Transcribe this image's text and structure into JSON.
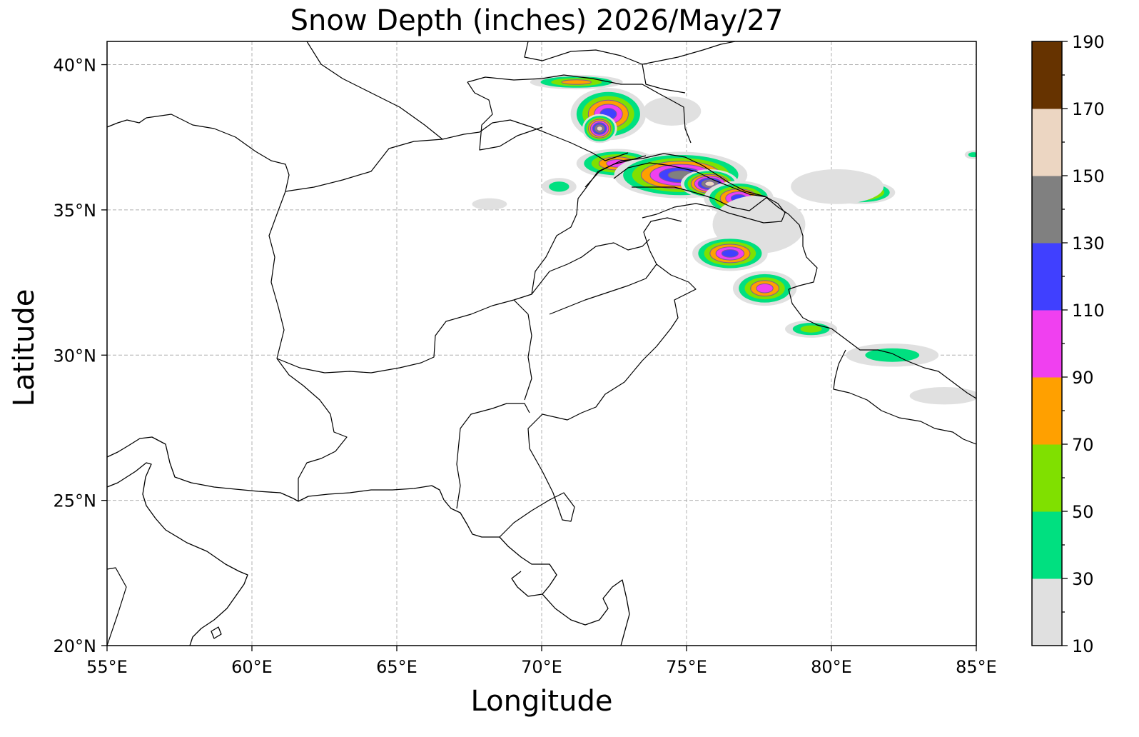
{
  "map": {
    "title": "Snow Depth (inches) 2026/May/27",
    "xlabel": "Longitude",
    "ylabel": "Latitude",
    "lon_range": [
      55,
      85
    ],
    "lat_range": [
      20,
      40.8
    ],
    "lon_ticks": [
      55,
      60,
      65,
      70,
      75,
      80,
      85
    ],
    "lon_tick_labels": [
      "55°E",
      "60°E",
      "65°E",
      "70°E",
      "75°E",
      "80°E",
      "85°E"
    ],
    "lat_ticks": [
      20,
      25,
      30,
      35,
      40
    ],
    "lat_tick_labels": [
      "20°N",
      "25°N",
      "30°N",
      "35°N",
      "40°N"
    ],
    "grid": true,
    "projection": "PlateCarree"
  },
  "colorbar": {
    "levels": [
      10,
      30,
      50,
      70,
      90,
      110,
      130,
      150,
      170,
      190
    ],
    "level_labels": [
      "10",
      "30",
      "50",
      "70",
      "90",
      "110",
      "130",
      "150",
      "170",
      "190"
    ],
    "colors": [
      "#e0e0e0",
      "#00e080",
      "#80e000",
      "#ffa000",
      "#f040f0",
      "#4040ff",
      "#808080",
      "#ecd6c2",
      "#663300"
    ],
    "placement": "right"
  },
  "colors": {
    "background": "#ffffff",
    "coastline": "#000000",
    "gridline": "#b0b0b0"
  },
  "snow_regions": [
    {
      "lon": 71.2,
      "lat": 39.4,
      "rx": 1.6,
      "ry": 0.25,
      "level": 3
    },
    {
      "lon": 72.3,
      "lat": 38.3,
      "rx": 1.3,
      "ry": 0.9,
      "level": 5
    },
    {
      "lon": 72.0,
      "lat": 37.8,
      "rx": 0.6,
      "ry": 0.5,
      "level": 7
    },
    {
      "lon": 74.5,
      "lat": 38.4,
      "rx": 1.0,
      "ry": 0.5,
      "level": 0
    },
    {
      "lon": 72.6,
      "lat": 36.6,
      "rx": 1.4,
      "ry": 0.5,
      "level": 4
    },
    {
      "lon": 74.8,
      "lat": 36.2,
      "rx": 2.3,
      "ry": 0.8,
      "level": 6
    },
    {
      "lon": 75.8,
      "lat": 35.9,
      "rx": 1.0,
      "ry": 0.5,
      "level": 7
    },
    {
      "lon": 76.8,
      "lat": 35.4,
      "rx": 1.2,
      "ry": 0.6,
      "level": 5
    },
    {
      "lon": 77.5,
      "lat": 34.5,
      "rx": 1.6,
      "ry": 1.0,
      "level": 0
    },
    {
      "lon": 76.5,
      "lat": 33.5,
      "rx": 1.3,
      "ry": 0.6,
      "level": 5
    },
    {
      "lon": 77.7,
      "lat": 32.3,
      "rx": 1.1,
      "ry": 0.6,
      "level": 4
    },
    {
      "lon": 79.3,
      "lat": 30.9,
      "rx": 0.9,
      "ry": 0.3,
      "level": 2
    },
    {
      "lon": 81.0,
      "lat": 35.6,
      "rx": 1.2,
      "ry": 0.4,
      "level": 5
    },
    {
      "lon": 80.2,
      "lat": 35.8,
      "rx": 1.6,
      "ry": 0.6,
      "level": 0
    },
    {
      "lon": 82.1,
      "lat": 30.0,
      "rx": 1.6,
      "ry": 0.4,
      "level": 1
    },
    {
      "lon": 83.9,
      "lat": 28.6,
      "rx": 1.2,
      "ry": 0.3,
      "level": 0
    },
    {
      "lon": 84.9,
      "lat": 36.9,
      "rx": 0.3,
      "ry": 0.15,
      "level": 1
    },
    {
      "lon": 70.6,
      "lat": 35.8,
      "rx": 0.6,
      "ry": 0.3,
      "level": 1
    },
    {
      "lon": 68.2,
      "lat": 35.2,
      "rx": 0.6,
      "ry": 0.2,
      "level": 0
    }
  ]
}
